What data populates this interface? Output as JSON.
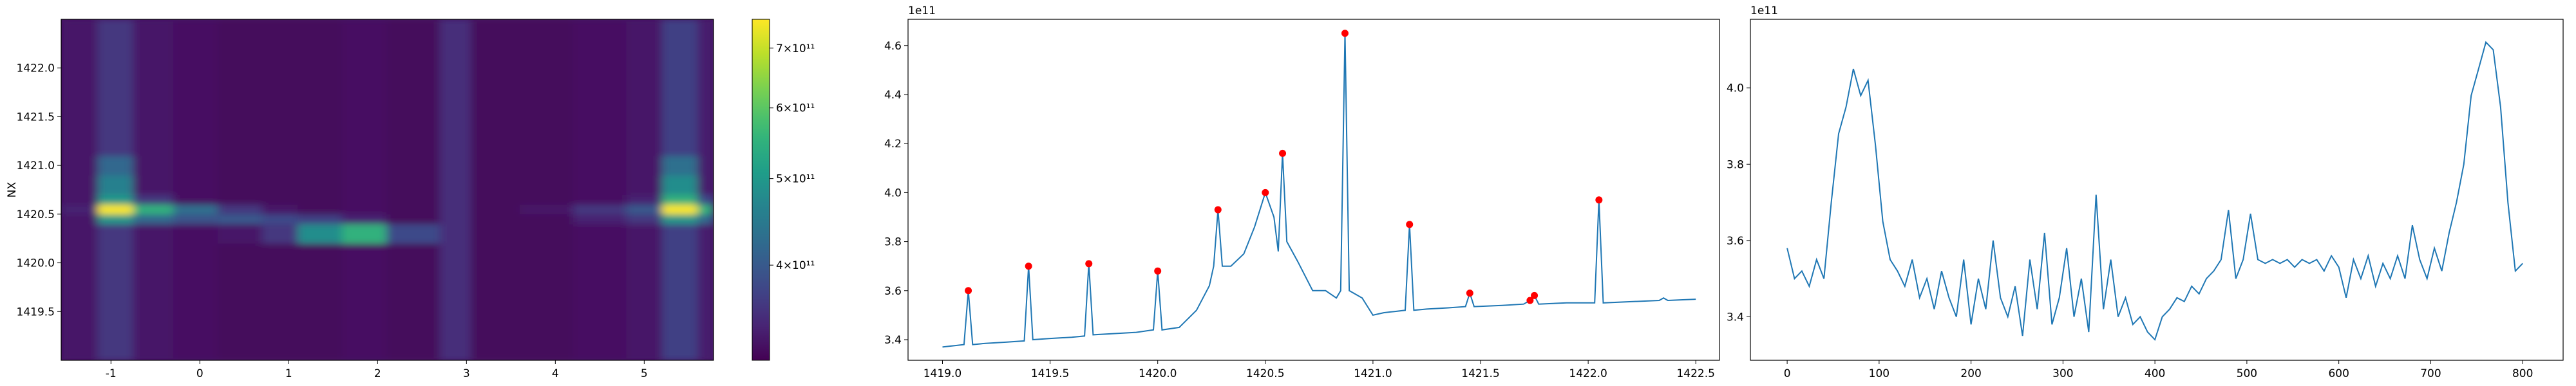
{
  "chart_data": [
    {
      "type": "heatmap",
      "ylabel": "NX",
      "colormap": "viridis",
      "xlim": [
        -1.56,
        5.78
      ],
      "ylim": [
        1419.0,
        1422.5
      ],
      "xticks": [
        -1,
        0,
        1,
        2,
        3,
        4,
        5
      ],
      "yticks": [
        1419.5,
        {
          "value": 1420.0,
          "label": "1420.0"
        },
        1420.5,
        {
          "value": 1421.0,
          "label": "1421.0"
        },
        1421.5,
        {
          "value": 1422.0,
          "label": "1422.0"
        }
      ],
      "xedges": [
        -1.56,
        -1.15,
        -0.75,
        -0.3,
        0.2,
        0.7,
        1.1,
        1.6,
        2.1,
        2.7,
        3.05,
        3.6,
        4.2,
        4.8,
        5.2,
        5.6,
        5.78
      ],
      "yedges": [
        1419.0,
        1419.5,
        1420.0,
        1420.2,
        1420.4,
        1420.5,
        1420.6,
        1420.7,
        1420.9,
        1421.1,
        1421.5,
        1422.0,
        1422.5
      ],
      "z": [
        [
          330000000000.0,
          360000000000.0,
          330000000000.0,
          325000000000.0,
          320000000000.0,
          320000000000.0,
          320000000000.0,
          325000000000.0,
          320000000000.0,
          350000000000.0,
          320000000000.0,
          320000000000.0,
          325000000000.0,
          330000000000.0,
          370000000000.0,
          335000000000.0
        ],
        [
          330000000000.0,
          360000000000.0,
          330000000000.0,
          325000000000.0,
          320000000000.0,
          320000000000.0,
          320000000000.0,
          325000000000.0,
          320000000000.0,
          350000000000.0,
          320000000000.0,
          320000000000.0,
          325000000000.0,
          330000000000.0,
          370000000000.0,
          335000000000.0
        ],
        [
          330000000000.0,
          360000000000.0,
          330000000000.0,
          325000000000.0,
          320000000000.0,
          320000000000.0,
          320000000000.0,
          325000000000.0,
          320000000000.0,
          350000000000.0,
          320000000000.0,
          320000000000.0,
          325000000000.0,
          330000000000.0,
          370000000000.0,
          335000000000.0
        ],
        [
          330000000000.0,
          360000000000.0,
          330000000000.0,
          325000000000.0,
          330000000000.0,
          360000000000.0,
          480000000000.0,
          550000000000.0,
          380000000000.0,
          350000000000.0,
          320000000000.0,
          320000000000.0,
          325000000000.0,
          330000000000.0,
          370000000000.0,
          335000000000.0
        ],
        [
          330000000000.0,
          500000000000.0,
          420000000000.0,
          390000000000.0,
          400000000000.0,
          380000000000.0,
          370000000000.0,
          340000000000.0,
          320000000000.0,
          350000000000.0,
          320000000000.0,
          320000000000.0,
          340000000000.0,
          360000000000.0,
          500000000000.0,
          420000000000.0
        ],
        [
          340000000000.0,
          750000000000.0,
          550000000000.0,
          430000000000.0,
          360000000000.0,
          330000000000.0,
          320000000000.0,
          325000000000.0,
          320000000000.0,
          350000000000.0,
          320000000000.0,
          330000000000.0,
          360000000000.0,
          400000000000.0,
          750000000000.0,
          550000000000.0
        ],
        [
          330000000000.0,
          500000000000.0,
          360000000000.0,
          325000000000.0,
          320000000000.0,
          320000000000.0,
          320000000000.0,
          325000000000.0,
          320000000000.0,
          350000000000.0,
          320000000000.0,
          320000000000.0,
          325000000000.0,
          340000000000.0,
          550000000000.0,
          380000000000.0
        ],
        [
          330000000000.0,
          460000000000.0,
          330000000000.0,
          325000000000.0,
          320000000000.0,
          320000000000.0,
          320000000000.0,
          325000000000.0,
          320000000000.0,
          350000000000.0,
          320000000000.0,
          320000000000.0,
          325000000000.0,
          330000000000.0,
          480000000000.0,
          335000000000.0
        ],
        [
          330000000000.0,
          420000000000.0,
          330000000000.0,
          325000000000.0,
          320000000000.0,
          320000000000.0,
          320000000000.0,
          325000000000.0,
          320000000000.0,
          350000000000.0,
          320000000000.0,
          320000000000.0,
          325000000000.0,
          330000000000.0,
          430000000000.0,
          335000000000.0
        ],
        [
          330000000000.0,
          360000000000.0,
          330000000000.0,
          325000000000.0,
          320000000000.0,
          320000000000.0,
          320000000000.0,
          325000000000.0,
          320000000000.0,
          350000000000.0,
          320000000000.0,
          320000000000.0,
          325000000000.0,
          330000000000.0,
          370000000000.0,
          335000000000.0
        ],
        [
          330000000000.0,
          360000000000.0,
          330000000000.0,
          325000000000.0,
          320000000000.0,
          320000000000.0,
          320000000000.0,
          325000000000.0,
          320000000000.0,
          350000000000.0,
          320000000000.0,
          320000000000.0,
          325000000000.0,
          330000000000.0,
          370000000000.0,
          335000000000.0
        ],
        [
          330000000000.0,
          360000000000.0,
          330000000000.0,
          325000000000.0,
          320000000000.0,
          320000000000.0,
          320000000000.0,
          325000000000.0,
          320000000000.0,
          350000000000.0,
          320000000000.0,
          320000000000.0,
          325000000000.0,
          330000000000.0,
          370000000000.0,
          335000000000.0
        ]
      ],
      "colorbar": {
        "scale": "log",
        "clim": [
          313000000000.0,
          754000000000.0
        ],
        "ticks": [
          {
            "value": 400000000000.0,
            "label": "4×10¹¹"
          },
          {
            "value": 500000000000.0,
            "label": "5×10¹¹"
          },
          {
            "value": 600000000000.0,
            "label": "6×10¹¹"
          },
          {
            "value": 700000000000.0,
            "label": "7×10¹¹"
          }
        ]
      }
    },
    {
      "type": "line",
      "offset_label": "1e11",
      "color": "#1f77b4",
      "xlim": [
        1418.84,
        1422.61
      ],
      "ylim": [
        3.316,
        4.707
      ],
      "xticks": [
        {
          "value": 1419.0,
          "label": "1419.0"
        },
        1419.5,
        {
          "value": 1420.0,
          "label": "1420.0"
        },
        1420.5,
        {
          "value": 1421.0,
          "label": "1421.0"
        },
        1421.5,
        {
          "value": 1422.0,
          "label": "1422.0"
        },
        1422.5
      ],
      "yticks": [
        3.4,
        3.6,
        3.8,
        {
          "value": 4.0,
          "label": "4.0"
        },
        4.2,
        4.4,
        4.6
      ],
      "x": [
        1419.0,
        1419.05,
        1419.1,
        1419.12,
        1419.14,
        1419.2,
        1419.3,
        1419.38,
        1419.4,
        1419.42,
        1419.5,
        1419.6,
        1419.66,
        1419.68,
        1419.7,
        1419.8,
        1419.9,
        1419.98,
        1420.0,
        1420.02,
        1420.1,
        1420.18,
        1420.24,
        1420.26,
        1420.28,
        1420.3,
        1420.34,
        1420.4,
        1420.45,
        1420.5,
        1420.54,
        1420.56,
        1420.58,
        1420.6,
        1420.65,
        1420.72,
        1420.78,
        1420.83,
        1420.85,
        1420.87,
        1420.89,
        1420.95,
        1421.0,
        1421.05,
        1421.1,
        1421.15,
        1421.17,
        1421.19,
        1421.25,
        1421.35,
        1421.43,
        1421.45,
        1421.47,
        1421.6,
        1421.7,
        1421.73,
        1421.75,
        1421.77,
        1421.9,
        1422.03,
        1422.05,
        1422.07,
        1422.2,
        1422.33,
        1422.35,
        1422.37,
        1422.5
      ],
      "values": [
        3.37,
        3.375,
        3.38,
        3.6,
        3.38,
        3.385,
        3.39,
        3.395,
        3.7,
        3.4,
        3.405,
        3.41,
        3.415,
        3.71,
        3.42,
        3.425,
        3.43,
        3.44,
        3.68,
        3.44,
        3.45,
        3.52,
        3.62,
        3.7,
        3.93,
        3.7,
        3.7,
        3.75,
        3.86,
        4.0,
        3.9,
        3.76,
        4.16,
        3.8,
        3.72,
        3.6,
        3.6,
        3.57,
        3.6,
        4.65,
        3.6,
        3.57,
        3.5,
        3.51,
        3.515,
        3.52,
        3.87,
        3.52,
        3.525,
        3.53,
        3.535,
        3.59,
        3.535,
        3.54,
        3.545,
        3.56,
        3.58,
        3.545,
        3.55,
        3.55,
        3.97,
        3.55,
        3.555,
        3.56,
        3.57,
        3.56,
        3.565
      ],
      "markers": {
        "color": "red",
        "x": [
          1419.12,
          1419.4,
          1419.68,
          1420.0,
          1420.28,
          1420.5,
          1420.58,
          1420.87,
          1421.17,
          1421.45,
          1421.73,
          1421.75,
          1422.05
        ],
        "values": [
          3.6,
          3.7,
          3.71,
          3.68,
          3.93,
          4.0,
          4.16,
          4.65,
          3.87,
          3.59,
          3.56,
          3.58,
          3.97
        ]
      }
    },
    {
      "type": "line",
      "offset_label": "1e11",
      "color": "#1f77b4",
      "xlim": [
        -40,
        844
      ],
      "ylim": [
        3.286,
        4.18
      ],
      "xticks": [
        0,
        100,
        200,
        300,
        400,
        500,
        600,
        700,
        800
      ],
      "yticks": [
        3.4,
        3.6,
        3.8,
        {
          "value": 4.0,
          "label": "4.0"
        }
      ],
      "x": [
        0,
        8,
        16,
        24,
        32,
        40,
        48,
        56,
        64,
        72,
        80,
        88,
        96,
        104,
        112,
        120,
        128,
        136,
        144,
        152,
        160,
        168,
        176,
        184,
        192,
        200,
        208,
        216,
        224,
        232,
        240,
        248,
        256,
        264,
        272,
        280,
        288,
        296,
        304,
        312,
        320,
        328,
        336,
        344,
        352,
        360,
        368,
        376,
        384,
        392,
        400,
        408,
        416,
        424,
        432,
        440,
        448,
        456,
        464,
        472,
        480,
        488,
        496,
        504,
        512,
        520,
        528,
        536,
        544,
        552,
        560,
        568,
        576,
        584,
        592,
        600,
        608,
        616,
        624,
        632,
        640,
        648,
        656,
        664,
        672,
        680,
        688,
        696,
        704,
        712,
        720,
        728,
        736,
        744,
        752,
        760,
        768,
        776,
        784,
        792,
        800
      ],
      "values": [
        3.58,
        3.5,
        3.52,
        3.48,
        3.55,
        3.5,
        3.7,
        3.88,
        3.95,
        4.05,
        3.98,
        4.02,
        3.85,
        3.65,
        3.55,
        3.52,
        3.48,
        3.55,
        3.45,
        3.5,
        3.42,
        3.52,
        3.45,
        3.4,
        3.55,
        3.38,
        3.5,
        3.42,
        3.6,
        3.45,
        3.4,
        3.48,
        3.35,
        3.55,
        3.42,
        3.62,
        3.38,
        3.45,
        3.58,
        3.4,
        3.5,
        3.36,
        3.72,
        3.42,
        3.55,
        3.4,
        3.45,
        3.38,
        3.4,
        3.36,
        3.34,
        3.4,
        3.42,
        3.45,
        3.44,
        3.48,
        3.46,
        3.5,
        3.52,
        3.55,
        3.68,
        3.5,
        3.55,
        3.67,
        3.55,
        3.54,
        3.55,
        3.54,
        3.55,
        3.53,
        3.55,
        3.54,
        3.55,
        3.52,
        3.56,
        3.53,
        3.45,
        3.55,
        3.5,
        3.56,
        3.48,
        3.54,
        3.5,
        3.56,
        3.5,
        3.64,
        3.55,
        3.5,
        3.58,
        3.52,
        3.62,
        3.7,
        3.8,
        3.98,
        4.05,
        4.12,
        4.1,
        3.95,
        3.7,
        3.52,
        3.54
      ]
    }
  ]
}
